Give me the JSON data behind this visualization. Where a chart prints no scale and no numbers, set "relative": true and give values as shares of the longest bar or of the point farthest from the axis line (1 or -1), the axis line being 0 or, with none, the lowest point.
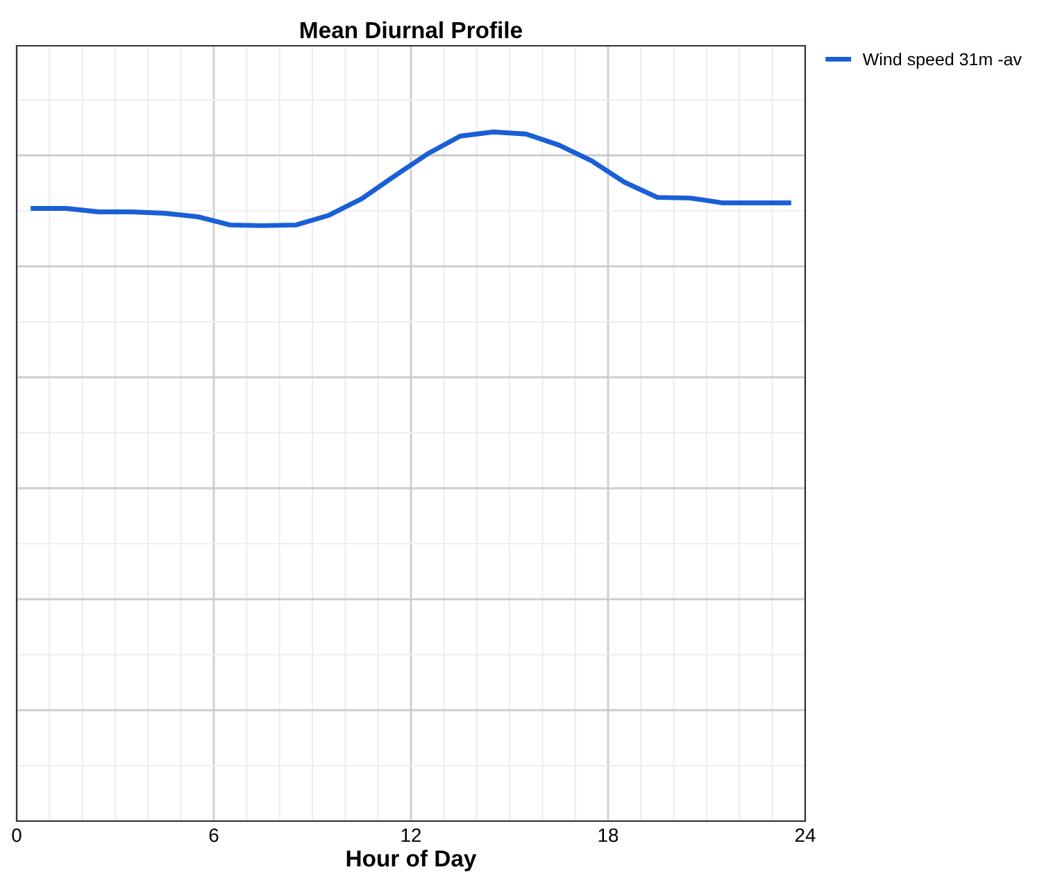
{
  "chart_data": {
    "type": "line",
    "title": "Mean Diurnal Profile",
    "xlabel": "Hour of Day",
    "x": [
      0.5,
      1.5,
      2.5,
      3.5,
      4.5,
      5.5,
      6.5,
      7.5,
      8.5,
      9.5,
      10.5,
      11.5,
      12.5,
      13.5,
      14.5,
      15.5,
      16.5,
      17.5,
      18.5,
      19.5,
      20.5,
      21.5,
      22.5,
      23.5
    ],
    "series": [
      {
        "name": "Wind speed 31m -av",
        "color": "#1a5fd6",
        "values": [
          0.889,
          0.889,
          0.884,
          0.884,
          0.882,
          0.877,
          0.865,
          0.864,
          0.865,
          0.879,
          0.903,
          0.936,
          0.968,
          0.994,
          1,
          0.997,
          0.981,
          0.958,
          0.927,
          0.905,
          0.904,
          0.897,
          0.897,
          0.897
        ]
      }
    ],
    "relative": true,
    "xlim": [
      0,
      24
    ],
    "xticks": [
      0,
      6,
      12,
      18,
      24
    ],
    "tick_labels": "x",
    "grid": true,
    "legend": "top right",
    "marker": "none",
    "line_style": "solid"
  }
}
